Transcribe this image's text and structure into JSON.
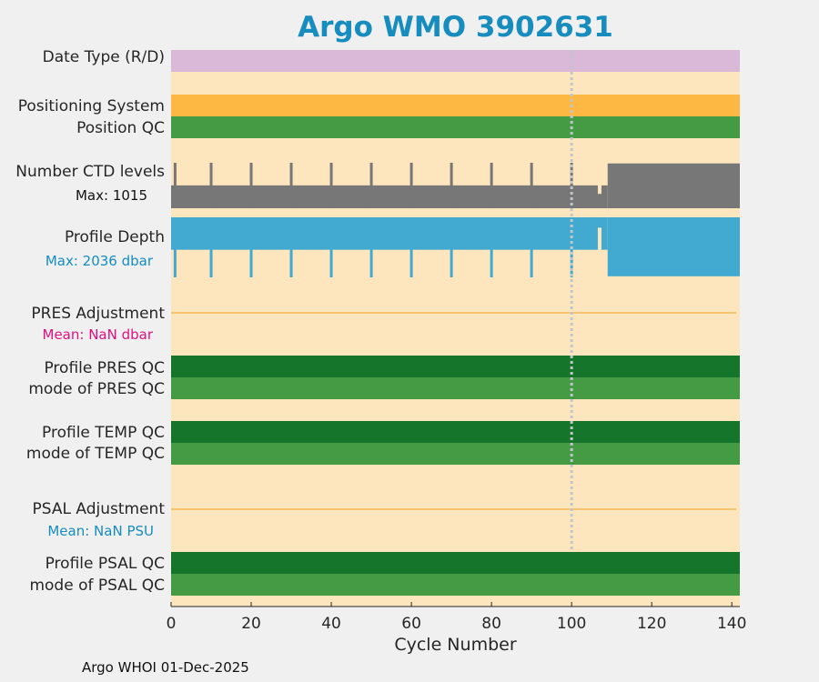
{
  "title": "Argo WMO 3902631",
  "footer": "Argo WHOI 01-Dec-2025",
  "colors": {
    "background": "#fde6bd",
    "data_type_bar": "#d9b8d8",
    "positioning_bar": "#fdb844",
    "qc_dark": "#15752b",
    "qc_light": "#459a44",
    "ctd_bars": "#777777",
    "depth_bars": "#42aad0",
    "adjustment_line": "#f7b955",
    "reference_line": "#c0c6cc",
    "title": "#168cbf",
    "pres_mean_label": "#e0117f",
    "psal_mean_label": "#168cbf"
  },
  "labels": {
    "data_type": "Date Type (R/D)",
    "positioning": "Positioning System",
    "position_qc": "Position QC",
    "ctd_levels": "Number CTD levels",
    "ctd_max": "Max: 1015",
    "profile_depth": "Profile Depth",
    "depth_max": "Max: 2036 dbar",
    "pres_adj": "PRES Adjustment",
    "pres_mean": "Mean:  NaN dbar",
    "pres_qc": "Profile PRES QC",
    "pres_mode": "mode of PRES QC",
    "temp_qc": "Profile TEMP QC",
    "temp_mode": "mode of TEMP QC",
    "psal_adj": "PSAL Adjustment",
    "psal_mean": "Mean:  NaN PSU",
    "psal_qc": "Profile PSAL QC",
    "psal_mode": "mode of PSAL QC"
  },
  "chart_data": {
    "type": "bar",
    "xlabel": "Cycle Number",
    "xlim": [
      0,
      142
    ],
    "xticks": [
      0,
      20,
      40,
      60,
      80,
      100,
      120,
      140
    ],
    "reference_line_cycle": 100,
    "ctd_levels": {
      "max": 1015,
      "segments": [
        {
          "from": 0,
          "to": 109,
          "levels": 510
        },
        {
          "from": 109,
          "to": 142,
          "levels": 1000
        }
      ],
      "spike_cycles": [
        1,
        10,
        20,
        30,
        40,
        50,
        60,
        70,
        80,
        90,
        100
      ],
      "spike_levels": 1015,
      "dip_cycles": [
        107
      ],
      "dip_levels": 320
    },
    "profile_depth": {
      "max_dbar": 2036,
      "segments": [
        {
          "from": 0,
          "to": 109,
          "depth_dbar": 1100
        },
        {
          "from": 109,
          "to": 142,
          "depth_dbar": 2000
        }
      ],
      "deep_cycles": [
        1,
        10,
        20,
        30,
        40,
        50,
        60,
        70,
        80,
        90,
        100
      ],
      "deep_depth_dbar": 2036,
      "shallow_cycles": [
        107
      ],
      "shallow_depth_dbar": 350
    },
    "bands": [
      {
        "name": "Date Type (R/D)",
        "color": "#d9b8d8"
      },
      {
        "name": "Positioning System",
        "color": "#fdb844"
      },
      {
        "name": "Position QC",
        "color": "#459a44"
      },
      {
        "name": "Profile PRES QC",
        "color": "#15752b"
      },
      {
        "name": "mode of PRES QC",
        "color": "#459a44"
      },
      {
        "name": "Profile TEMP QC",
        "color": "#15752b"
      },
      {
        "name": "mode of TEMP QC",
        "color": "#459a44"
      },
      {
        "name": "Profile PSAL QC",
        "color": "#15752b"
      },
      {
        "name": "mode of PSAL QC",
        "color": "#459a44"
      }
    ]
  }
}
